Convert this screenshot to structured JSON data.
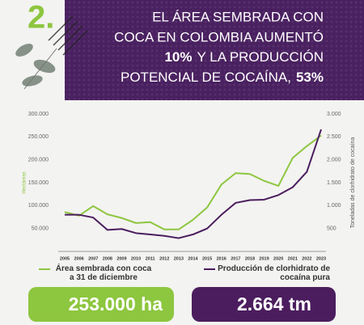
{
  "header": {
    "number": "2.",
    "title": [
      [
        "EL ÁREA SEMBRADA CON"
      ],
      [
        "COCA EN COLOMBIA AUMENTÓ"
      ],
      [
        "10%",
        "Y LA PRODUCCIÓN"
      ],
      [
        "POTENCIAL DE COCAÍNA,",
        "53%"
      ]
    ]
  },
  "chart_data": {
    "type": "line",
    "x": [
      2005,
      2006,
      2007,
      2008,
      2009,
      2010,
      2011,
      2012,
      2013,
      2014,
      2015,
      2016,
      2017,
      2018,
      2019,
      2020,
      2021,
      2022,
      2023
    ],
    "xlim": [
      2005,
      2023
    ],
    "ylabel": "Hectáreas",
    "y2label": "Toneladas de clorhidrato de cocaína",
    "ylim": [
      0,
      300000
    ],
    "yticks": [
      {
        "value": 50000,
        "label": "50.000"
      },
      {
        "value": 100000,
        "label": "100.000"
      },
      {
        "value": 150000,
        "label": "150.000"
      },
      {
        "value": 200000,
        "label": "200.000"
      },
      {
        "value": 250000,
        "label": "250.000"
      },
      {
        "value": 300000,
        "label": "300.000"
      }
    ],
    "y2lim": [
      0,
      3000
    ],
    "y2ticks": [
      500,
      {
        "value": 1000,
        "label": "1.000"
      },
      {
        "value": 1500,
        "label": "1.500"
      },
      {
        "value": 2000,
        "label": "2.000"
      },
      {
        "value": 2500,
        "label": "2.500"
      },
      {
        "value": 3000,
        "label": "3.000"
      }
    ],
    "grid": false,
    "series": [
      {
        "name": "Área sembrada con coca a 31 de diciembre",
        "color": "#8dc63f",
        "values": [
          86000,
          78000,
          99000,
          81000,
          73000,
          62000,
          64000,
          48000,
          48000,
          69000,
          96000,
          146000,
          171000,
          169000,
          154000,
          143000,
          204000,
          230000,
          253000
        ]
      },
      {
        "name": "Producción de clorhidrato de cocaína pura",
        "color": "#4b1d5e",
        "axis": "y2",
        "values": [
          800,
          800,
          740,
          470,
          490,
          400,
          370,
          340,
          290,
          370,
          500,
          800,
          1060,
          1120,
          1130,
          1230,
          1400,
          1740,
          2664
        ]
      }
    ]
  },
  "stats": [
    "253.000 ha",
    "2.664 tm"
  ]
}
